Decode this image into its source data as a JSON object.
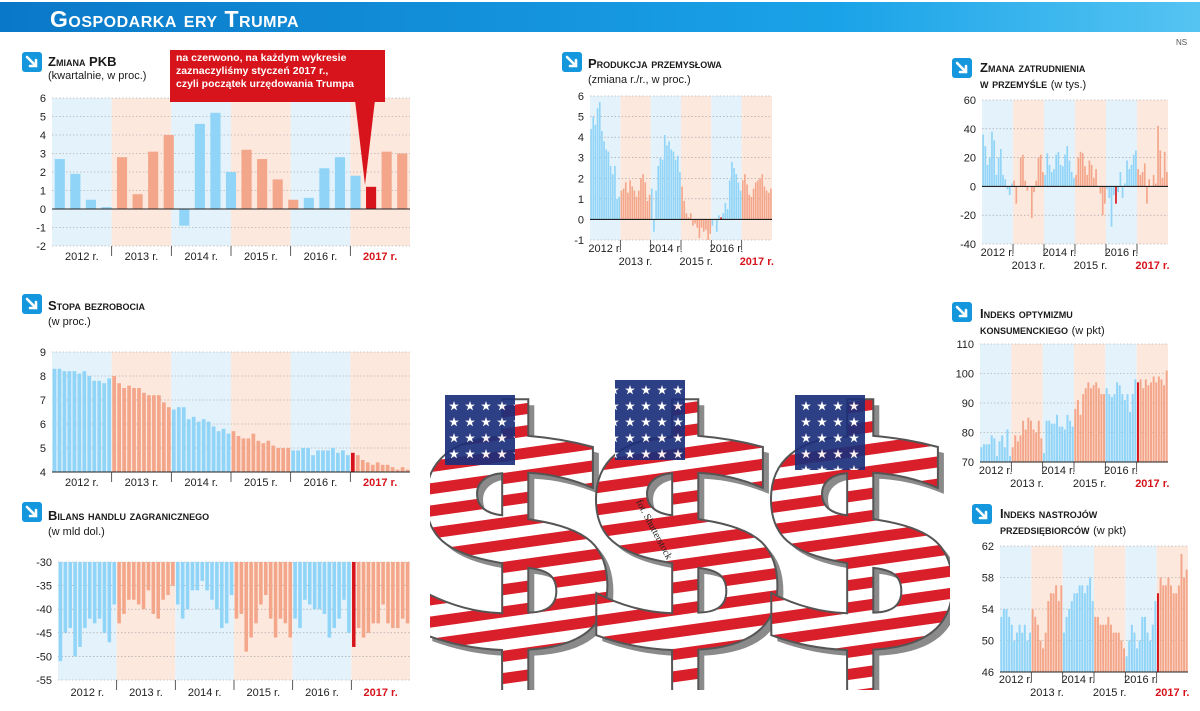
{
  "header": {
    "title": "Gospodarka ery Trumpa",
    "credit": "NS"
  },
  "colors": {
    "blue_bar": "#90d4f7",
    "orange_bar": "#f3a68a",
    "red": "#d7141c",
    "blue_bg": "#e3f2fb",
    "orange_bg": "#fde8de",
    "header": "#1497dc"
  },
  "callout": {
    "lines": [
      "na czerwono, na każdym wykresie",
      "zaznaczyliśmy styczeń 2017 r.,",
      "czyli początek urzędowania Trumpa"
    ]
  },
  "photo_credit": "fot. Shutterstock",
  "chart_data": [
    {
      "id": "pkb",
      "type": "bar",
      "title": "Zmiana PKB",
      "subtitle": "(kwartalnie, w proc.)",
      "ylim": [
        -2,
        6
      ],
      "yticks": [
        -2,
        -1,
        0,
        1,
        2,
        3,
        4,
        5,
        6
      ],
      "years": [
        "2012 r.",
        "2013 r.",
        "2014 r.",
        "2015 r.",
        "2016 r.",
        "2017 r."
      ],
      "year_rows": [
        0,
        0,
        0,
        0,
        0,
        0
      ],
      "values": [
        2.7,
        1.9,
        0.5,
        0.1,
        2.8,
        0.8,
        3.1,
        4.0,
        -0.9,
        4.6,
        5.2,
        2.0,
        3.2,
        2.7,
        1.6,
        0.5,
        0.6,
        2.2,
        2.8,
        1.8,
        1.2,
        3.1,
        3.0
      ],
      "highlight_index": 20
    },
    {
      "id": "produkcja",
      "type": "bar",
      "title": "Produkcja przemysłowa",
      "subtitle": "(zmiana r./r., w proc.)",
      "ylim": [
        -1,
        6
      ],
      "yticks": [
        -1,
        0,
        1,
        2,
        3,
        4,
        5,
        6
      ],
      "years": [
        "2012 r.",
        "2013 r.",
        "2014 r.",
        "2015 r.",
        "2016 r.",
        "2017 r."
      ],
      "year_rows": [
        0,
        1,
        0,
        1,
        0,
        1
      ],
      "values": [
        4.4,
        5.0,
        4.6,
        5.4,
        5.7,
        4.3,
        3.8,
        3.4,
        3.3,
        2.6,
        2.2,
        2.6,
        1.0,
        1.1,
        1.4,
        1.5,
        1.8,
        1.3,
        1.9,
        1.6,
        1.4,
        1.1,
        1.4,
        2.0,
        2.2,
        1.8,
        0.9,
        1.2,
        1.5,
        -0.6,
        1.4,
        2.6,
        3.0,
        2.9,
        4.1,
        3.6,
        3.8,
        3.4,
        3.3,
        2.9,
        3.1,
        2.3,
        1.6,
        0.9,
        0.3,
        0.1,
        0.3,
        -0.3,
        -0.2,
        -0.4,
        -0.9,
        -0.4,
        -0.6,
        -0.5,
        -1.0,
        -0.7,
        -0.3,
        0.0,
        -0.6,
        0.2,
        0.1,
        0.3,
        0.8,
        0.5,
        1.9,
        2.8,
        2.5,
        2.2,
        1.8,
        1.4,
        1.9,
        2.2,
        1.7,
        1.2,
        1.1,
        1.5,
        1.8,
        1.9,
        2.0,
        2.2,
        1.6,
        1.4,
        1.3,
        1.5
      ],
      "highlight_index": 60
    },
    {
      "id": "zatrudnienie",
      "type": "bar",
      "title": "Zmana zatrudnienia",
      "title2": "w przemyśle",
      "subtitle": "(w tys.)",
      "ylim": [
        -40,
        60
      ],
      "yticks": [
        -40,
        -20,
        0,
        20,
        40,
        60
      ],
      "years": [
        "2012 r.",
        "2013 r.",
        "2014 r.",
        "2015 r.",
        "2016 r.",
        "2017 r."
      ],
      "year_rows": [
        0,
        1,
        0,
        1,
        0,
        1
      ],
      "values": [
        36,
        28,
        15,
        20,
        38,
        32,
        8,
        20,
        26,
        8,
        5,
        -2,
        -6,
        2,
        4,
        -12,
        0,
        20,
        22,
        4,
        -3,
        0,
        -22,
        -4,
        4,
        20,
        22,
        10,
        8,
        23,
        15,
        10,
        12,
        22,
        24,
        15,
        14,
        22,
        28,
        18,
        10,
        6,
        8,
        20,
        24,
        23,
        14,
        8,
        18,
        15,
        6,
        12,
        0,
        -5,
        -20,
        -12,
        -2,
        -8,
        -28,
        -6,
        -12,
        -4,
        10,
        -8,
        2,
        18,
        12,
        15,
        22,
        25,
        12,
        8,
        10,
        16,
        -12,
        5,
        0,
        8,
        2,
        42,
        25,
        6,
        24,
        10
      ],
      "highlight_index": 60
    },
    {
      "id": "bezrobocie",
      "type": "bar",
      "title": "Stopa bezrobocia",
      "subtitle": "(w proc.)",
      "ylim": [
        4,
        9
      ],
      "yticks": [
        4,
        5,
        6,
        7,
        8,
        9
      ],
      "years": [
        "2012 r.",
        "2013 r.",
        "2014 r.",
        "2015 r.",
        "2016 r.",
        "2017 r."
      ],
      "year_rows": [
        0,
        0,
        0,
        0,
        0,
        0
      ],
      "values": [
        8.3,
        8.3,
        8.2,
        8.2,
        8.2,
        8.1,
        8.2,
        8.0,
        7.8,
        7.8,
        7.7,
        7.9,
        8.0,
        7.7,
        7.5,
        7.6,
        7.5,
        7.5,
        7.3,
        7.2,
        7.2,
        7.2,
        6.9,
        6.7,
        6.6,
        6.7,
        6.7,
        6.2,
        6.3,
        6.1,
        6.2,
        6.1,
        5.9,
        5.7,
        5.8,
        5.6,
        5.7,
        5.5,
        5.4,
        5.4,
        5.6,
        5.3,
        5.2,
        5.3,
        5.1,
        5.0,
        5.0,
        5.0,
        4.9,
        4.9,
        5.0,
        5.0,
        4.7,
        4.9,
        4.9,
        4.9,
        5.0,
        4.8,
        4.9,
        4.7,
        4.8,
        4.7,
        4.5,
        4.4,
        4.3,
        4.4,
        4.3,
        4.3,
        4.2,
        4.1,
        4.2,
        4.1
      ],
      "highlight_index": 60
    },
    {
      "id": "bilans",
      "type": "bar",
      "title": "Bilans handlu zagranicznego",
      "subtitle": "(w mld dol.)",
      "ylim": [
        -55,
        -30
      ],
      "yticks": [
        -30,
        -35,
        -40,
        -45,
        -50,
        -55
      ],
      "years": [
        "2012 r.",
        "2013 r.",
        "2014 r.",
        "2015 r.",
        "2016 r.",
        "2017 r."
      ],
      "year_rows": [
        0,
        0,
        0,
        0,
        0,
        0
      ],
      "values": [
        -51,
        -45,
        -44,
        -50,
        -48,
        -44,
        -42,
        -43,
        -42,
        -45,
        -47,
        -39,
        -43,
        -41,
        -38,
        -38,
        -39,
        -40,
        -36,
        -41,
        -42,
        -38,
        -37,
        -35,
        -39,
        -42,
        -40,
        -36,
        -36,
        -34,
        -36,
        -38,
        -40,
        -44,
        -43,
        -37,
        -42,
        -41,
        -49,
        -46,
        -43,
        -39,
        -37,
        -42,
        -46,
        -42,
        -43,
        -46,
        -42,
        -44,
        -38,
        -39,
        -40,
        -40,
        -41,
        -46,
        -44,
        -42,
        -38,
        -45,
        -48,
        -44,
        -46,
        -45,
        -43,
        -43,
        -39,
        -43,
        -44,
        -44,
        -42,
        -43
      ],
      "highlight_index": 60
    },
    {
      "id": "optymizm",
      "type": "bar",
      "title": "Indeks optymizmu",
      "title2": "konsumenckiego",
      "subtitle": "(w pkt)",
      "ylim": [
        70,
        110
      ],
      "yticks": [
        70,
        80,
        90,
        100,
        110
      ],
      "years": [
        "2012 r.",
        "2013 r.",
        "2014 r.",
        "2015 r.",
        "2016 r.",
        "2017 r."
      ],
      "year_rows": [
        0,
        1,
        0,
        1,
        0,
        1
      ],
      "values": [
        75,
        76,
        76,
        76,
        79,
        78,
        72,
        77,
        79,
        75,
        81,
        72,
        75,
        79,
        77,
        79,
        84,
        81,
        85,
        84,
        81,
        80,
        84,
        78,
        73,
        84,
        84,
        83,
        83,
        86,
        82,
        82,
        81,
        86,
        84,
        82,
        88,
        91,
        86,
        93,
        95,
        97,
        95,
        96,
        97,
        95,
        93,
        93,
        95,
        93,
        92,
        93,
        97,
        96,
        93,
        91,
        93,
        87,
        93,
        98,
        97,
        98,
        95,
        98,
        96,
        97,
        99,
        97,
        99,
        98,
        96,
        101
      ],
      "highlight_index": 60
    },
    {
      "id": "nastroje",
      "type": "bar",
      "title": "Indeks nastrojów",
      "title2": "przedsiębiorców",
      "subtitle": "(w pkt)",
      "ylim": [
        46,
        62
      ],
      "yticks": [
        46,
        50,
        54,
        58,
        62
      ],
      "years": [
        "2012 r.",
        "2013 r.",
        "2014 r.",
        "2015 r.",
        "2016 r.",
        "2017 r."
      ],
      "year_rows": [
        0,
        1,
        0,
        1,
        0,
        1
      ],
      "values": [
        53,
        54,
        54,
        53,
        52,
        50,
        51,
        52,
        51,
        52,
        50,
        51,
        54,
        53,
        52,
        50,
        49,
        51,
        55,
        56,
        56,
        57,
        55,
        57,
        51,
        53,
        54,
        55,
        56,
        56,
        57,
        57,
        56,
        57,
        58,
        55,
        53,
        53,
        52,
        52,
        52,
        53,
        52,
        51,
        51,
        51,
        50,
        49,
        48,
        50,
        52,
        51,
        49,
        50,
        53,
        53,
        51,
        50,
        52,
        55,
        56,
        58,
        57,
        57,
        58,
        57,
        56,
        56,
        57,
        61,
        58,
        59
      ],
      "highlight_index": 60
    }
  ]
}
